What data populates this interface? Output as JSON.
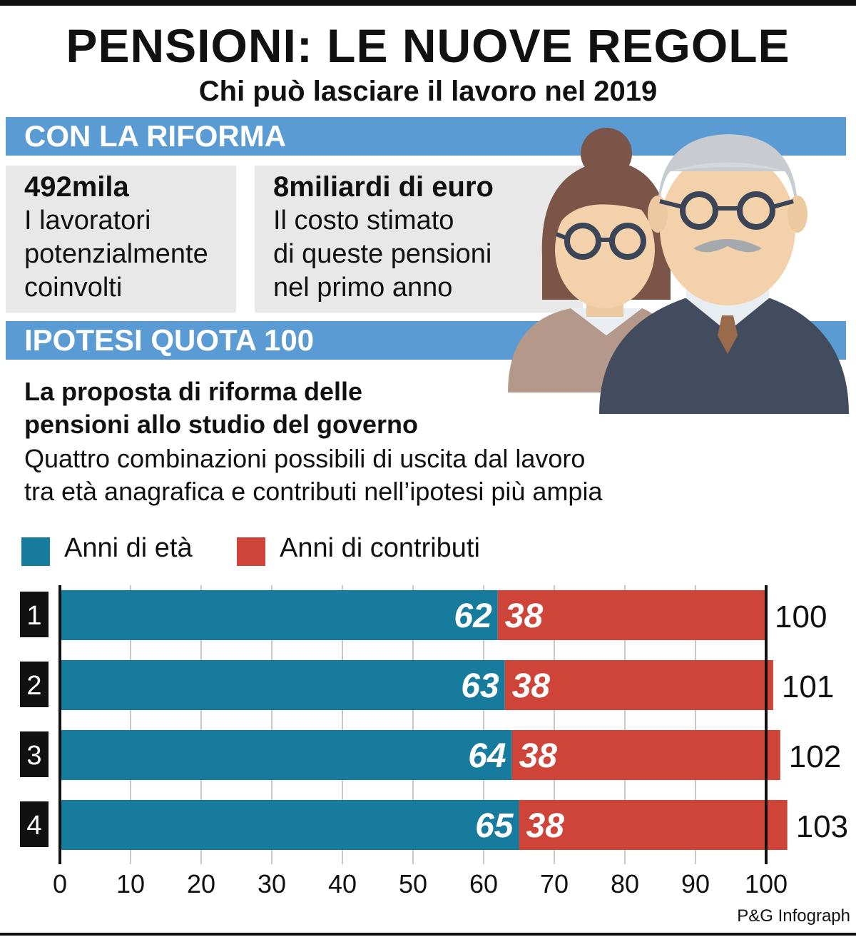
{
  "title": "PENSIONI: LE NUOVE REGOLE",
  "subtitle": "Chi può lasciare il lavoro nel 2019",
  "section1": {
    "heading": "CON LA RIFORMA",
    "stat1": {
      "value": "492mila",
      "lines": [
        "I lavoratori",
        "potenzialmente",
        "coinvolti"
      ]
    },
    "stat2": {
      "value": "8miliardi di euro",
      "lines": [
        "Il costo stimato",
        "di queste pensioni",
        "nel primo anno"
      ]
    }
  },
  "section2": {
    "heading": "IPOTESI QUOTA 100",
    "proposal_title": [
      "La proposta di riforma delle",
      "pensioni allo studio del governo"
    ],
    "proposal_text": [
      "Quattro combinazioni possibili di uscita dal lavoro",
      "tra età anagrafica e contributi nell’ipotesi più ampia"
    ]
  },
  "colors": {
    "band": "#5b9bd3",
    "age": "#177b9d",
    "contrib": "#cf4438",
    "box": "#e8e8e8"
  },
  "illustration": "elderly-couple-icon",
  "chart_data": {
    "type": "bar",
    "orientation": "horizontal",
    "stacked": true,
    "categories": [
      "1",
      "2",
      "3",
      "4"
    ],
    "series": [
      {
        "name": "Anni di età",
        "values": [
          62,
          63,
          64,
          65
        ]
      },
      {
        "name": "Anni di contributi",
        "values": [
          38,
          38,
          38,
          38
        ]
      }
    ],
    "totals": [
      "100",
      "101",
      "102",
      "103"
    ],
    "xlim": [
      0,
      103
    ],
    "xticks": [
      0,
      10,
      20,
      30,
      40,
      50,
      60,
      70,
      80,
      90,
      100
    ],
    "reference_line": 100,
    "grid": true,
    "legend": "top-left"
  },
  "credit": "P&G Infograph"
}
